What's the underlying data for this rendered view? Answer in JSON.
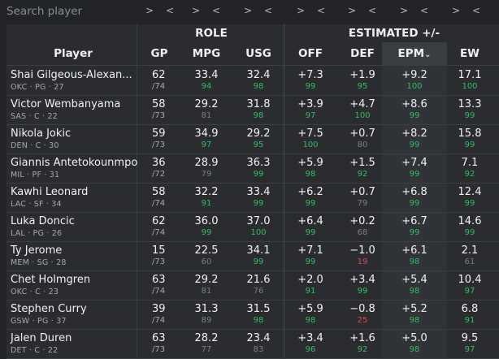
{
  "search": {
    "placeholder": "Search player"
  },
  "nav": {
    "next": ">",
    "prev": "<"
  },
  "groups": {
    "role": "ROLE",
    "estimated": "ESTIMATED +/-"
  },
  "columns": {
    "player": "Player",
    "gp": "GP",
    "mpg": "MPG",
    "usg": "USG",
    "off": "OFF",
    "def": "DEF",
    "epm": "EPM",
    "ew": "EW"
  },
  "sorted_column": "epm",
  "rows": [
    {
      "name": "Shai Gilgeous-Alexan...",
      "meta": "OKC · PG · 27",
      "gp": "62",
      "gp_total": "/74",
      "mpg": "33.4",
      "mpg_pct": "94",
      "usg": "32.4",
      "usg_pct": "98",
      "off": "+7.3",
      "off_pct": "99",
      "def": "+1.9",
      "def_pct": "95",
      "epm": "+9.2",
      "epm_pct": "100",
      "ew": "17.1",
      "ew_pct": "100"
    },
    {
      "name": "Victor Wembanyama",
      "meta": "SAS · C · 22",
      "gp": "58",
      "gp_total": "/73",
      "mpg": "29.2",
      "mpg_pct": "81",
      "usg": "31.8",
      "usg_pct": "98",
      "off": "+3.9",
      "off_pct": "97",
      "def": "+4.7",
      "def_pct": "100",
      "epm": "+8.6",
      "epm_pct": "99",
      "ew": "13.3",
      "ew_pct": "99"
    },
    {
      "name": "Nikola Jokic",
      "meta": "DEN · C · 30",
      "gp": "59",
      "gp_total": "/73",
      "mpg": "34.9",
      "mpg_pct": "97",
      "usg": "29.2",
      "usg_pct": "95",
      "off": "+7.5",
      "off_pct": "100",
      "def": "+0.7",
      "def_pct": "80",
      "epm": "+8.2",
      "epm_pct": "99",
      "ew": "15.8",
      "ew_pct": "99"
    },
    {
      "name": "Giannis Antetokounmpo",
      "meta": "MIL · PF · 31",
      "gp": "36",
      "gp_total": "/72",
      "mpg": "28.9",
      "mpg_pct": "79",
      "usg": "36.3",
      "usg_pct": "99",
      "off": "+5.9",
      "off_pct": "98",
      "def": "+1.5",
      "def_pct": "92",
      "epm": "+7.4",
      "epm_pct": "99",
      "ew": "7.1",
      "ew_pct": "92"
    },
    {
      "name": "Kawhi Leonard",
      "meta": "LAC · SF · 34",
      "gp": "58",
      "gp_total": "/74",
      "mpg": "32.2",
      "mpg_pct": "91",
      "usg": "33.4",
      "usg_pct": "99",
      "off": "+6.2",
      "off_pct": "99",
      "def": "+0.7",
      "def_pct": "79",
      "epm": "+6.8",
      "epm_pct": "99",
      "ew": "12.4",
      "ew_pct": "99"
    },
    {
      "name": "Luka Doncic",
      "meta": "LAL · PG · 26",
      "gp": "62",
      "gp_total": "/74",
      "mpg": "36.0",
      "mpg_pct": "99",
      "usg": "37.0",
      "usg_pct": "100",
      "off": "+6.4",
      "off_pct": "99",
      "def": "+0.2",
      "def_pct": "68",
      "epm": "+6.7",
      "epm_pct": "99",
      "ew": "14.6",
      "ew_pct": "99"
    },
    {
      "name": "Ty Jerome",
      "meta": "MEM · SG · 28",
      "gp": "15",
      "gp_total": "/73",
      "mpg": "22.5",
      "mpg_pct": "60",
      "usg": "34.1",
      "usg_pct": "99",
      "off": "+7.1",
      "off_pct": "99",
      "def": "−1.0",
      "def_pct": "19",
      "epm": "+6.1",
      "epm_pct": "98",
      "ew": "2.1",
      "ew_pct": "61"
    },
    {
      "name": "Chet Holmgren",
      "meta": "OKC · C · 23",
      "gp": "63",
      "gp_total": "/74",
      "mpg": "29.2",
      "mpg_pct": "81",
      "usg": "21.6",
      "usg_pct": "76",
      "off": "+2.0",
      "off_pct": "91",
      "def": "+3.4",
      "def_pct": "99",
      "epm": "+5.4",
      "epm_pct": "98",
      "ew": "10.4",
      "ew_pct": "97"
    },
    {
      "name": "Stephen Curry",
      "meta": "GSW · PG · 37",
      "gp": "39",
      "gp_total": "/74",
      "mpg": "31.3",
      "mpg_pct": "89",
      "usg": "31.5",
      "usg_pct": "98",
      "off": "+5.9",
      "off_pct": "98",
      "def": "−0.8",
      "def_pct": "25",
      "epm": "+5.2",
      "epm_pct": "98",
      "ew": "6.8",
      "ew_pct": "91"
    },
    {
      "name": "Jalen Duren",
      "meta": "DET · C · 22",
      "gp": "63",
      "gp_total": "/73",
      "mpg": "28.2",
      "mpg_pct": "77",
      "usg": "23.4",
      "usg_pct": "83",
      "off": "+3.4",
      "off_pct": "96",
      "def": "+1.6",
      "def_pct": "92",
      "epm": "+5.0",
      "epm_pct": "98",
      "ew": "9.5",
      "ew_pct": "97"
    }
  ]
}
